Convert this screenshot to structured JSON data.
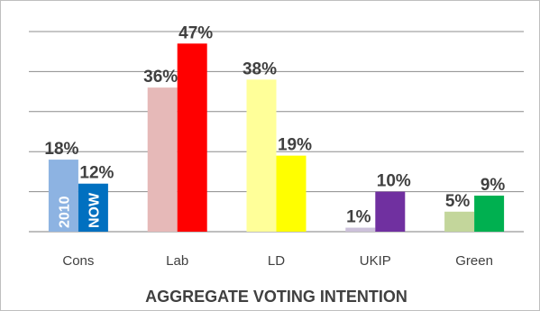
{
  "chart_data": {
    "type": "bar",
    "title": "AGGREGATE VOTING INTENTION",
    "categories": [
      "Cons",
      "Lab",
      "LD",
      "UKIP",
      "Green"
    ],
    "series": [
      {
        "name": "2010",
        "values": [
          18,
          36,
          38,
          1,
          5
        ],
        "labels": [
          "18%",
          "36%",
          "38%",
          "1%",
          "5%"
        ],
        "colors": [
          "#8db3e2",
          "#e6b9b8",
          "#ffff99",
          "#ccc1da",
          "#c3d69b"
        ]
      },
      {
        "name": "NOW",
        "values": [
          12,
          47,
          19,
          10,
          9
        ],
        "labels": [
          "12%",
          "47%",
          "19%",
          "10%",
          "9%"
        ],
        "colors": [
          "#0070c0",
          "#ff0000",
          "#ffff00",
          "#7030a0",
          "#00b050"
        ]
      }
    ],
    "ylim": [
      0,
      50
    ],
    "grid": true,
    "legend": "inline-in-first-bars"
  }
}
